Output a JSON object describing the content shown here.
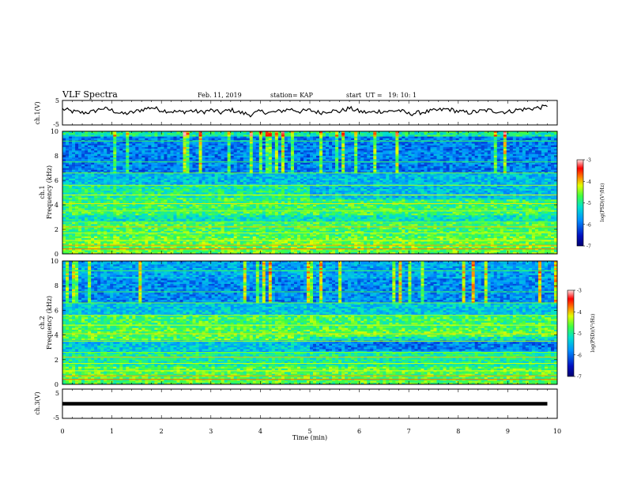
{
  "header": {
    "title": "VLF Spectra",
    "date": "Feb. 11, 2019",
    "station": "station= KAP",
    "start": "start  UT =   19: 10: 1"
  },
  "chart_data": [
    {
      "type": "line",
      "panel": "ch1-waveform",
      "ylabel": "ch.1(V)",
      "ylim": [
        -5,
        5
      ],
      "yticks": [
        "5",
        "-5"
      ],
      "xlim": [
        0,
        10
      ],
      "x": [
        0,
        0.2,
        0.4,
        0.6,
        0.8,
        1.0,
        1.2,
        1.4,
        1.6,
        1.8,
        2.0,
        2.2,
        2.4,
        2.6,
        2.8,
        3.0,
        3.2,
        3.4,
        3.6,
        3.8,
        4.0,
        4.2,
        4.4,
        4.6,
        4.8,
        5.0,
        5.2,
        5.4,
        5.6,
        5.8,
        6.0,
        6.2,
        6.4,
        6.6,
        6.8,
        7.0,
        7.2,
        7.4,
        7.6,
        7.8,
        8.0,
        8.2,
        8.4,
        8.6,
        8.8,
        9.0,
        9.2,
        9.4,
        9.6,
        9.8
      ],
      "values": [
        1.5,
        0.5,
        0.0,
        0.3,
        1.8,
        1.0,
        -0.5,
        0.0,
        1.2,
        2.2,
        1.0,
        0.5,
        0.3,
        0.8,
        0.2,
        1.0,
        0.0,
        1.2,
        0.0,
        -0.8,
        0.5,
        0.0,
        0.6,
        1.5,
        0.5,
        1.0,
        0.0,
        0.8,
        0.5,
        1.8,
        0.5,
        0.0,
        0.6,
        0.5,
        1.0,
        -0.5,
        0.0,
        0.5,
        1.0,
        1.5,
        0.5,
        0.0,
        0.5,
        1.0,
        0.5,
        0.3,
        1.2,
        1.5,
        2.0,
        2.5
      ],
      "color": "#000000"
    },
    {
      "type": "heatmap",
      "panel": "ch1-spectrogram",
      "ylabel_top": "ch.1",
      "ylabel": "Frequency (kHz)",
      "ylim": [
        0,
        10
      ],
      "yticks": [
        "0",
        "2",
        "4",
        "6",
        "8",
        "10"
      ],
      "xlim": [
        0,
        10
      ],
      "colorbar": {
        "label": "log(PSD)(V²/Hz)",
        "range": [
          -7,
          -3
        ],
        "ticks": [
          "-3",
          "-4",
          "-5",
          "-6",
          "-7"
        ]
      }
    },
    {
      "type": "heatmap",
      "panel": "ch2-spectrogram",
      "ylabel_top": "ch.2",
      "ylabel": "Frequency (kHz)",
      "ylim": [
        0,
        10
      ],
      "yticks": [
        "0",
        "2",
        "4",
        "6",
        "8",
        "10"
      ],
      "xlim": [
        0,
        10
      ],
      "colorbar": {
        "label": "log(PSD)(V²/Hz)",
        "range": [
          -7,
          -3
        ],
        "ticks": [
          "-3",
          "-4",
          "-5",
          "-6",
          "-7"
        ]
      }
    },
    {
      "type": "line",
      "panel": "ch3-waveform",
      "ylabel": "ch.3(V)",
      "ylim": [
        -5,
        5
      ],
      "yticks": [
        "5",
        "-5"
      ],
      "xlim": [
        0,
        10
      ],
      "x": [
        0,
        9.8
      ],
      "values": [
        0,
        0
      ],
      "color": "#000000"
    }
  ],
  "xaxis": {
    "label": "Time (min)",
    "ticks": [
      "0",
      "1",
      "2",
      "3",
      "4",
      "5",
      "6",
      "7",
      "8",
      "9",
      "10"
    ]
  },
  "colors": {
    "colormap": [
      "#1a0a8c",
      "#0040ff",
      "#00c0ff",
      "#20e080",
      "#80ff40",
      "#ffff00",
      "#ff8000",
      "#ff0000",
      "#ffb0b0"
    ]
  }
}
